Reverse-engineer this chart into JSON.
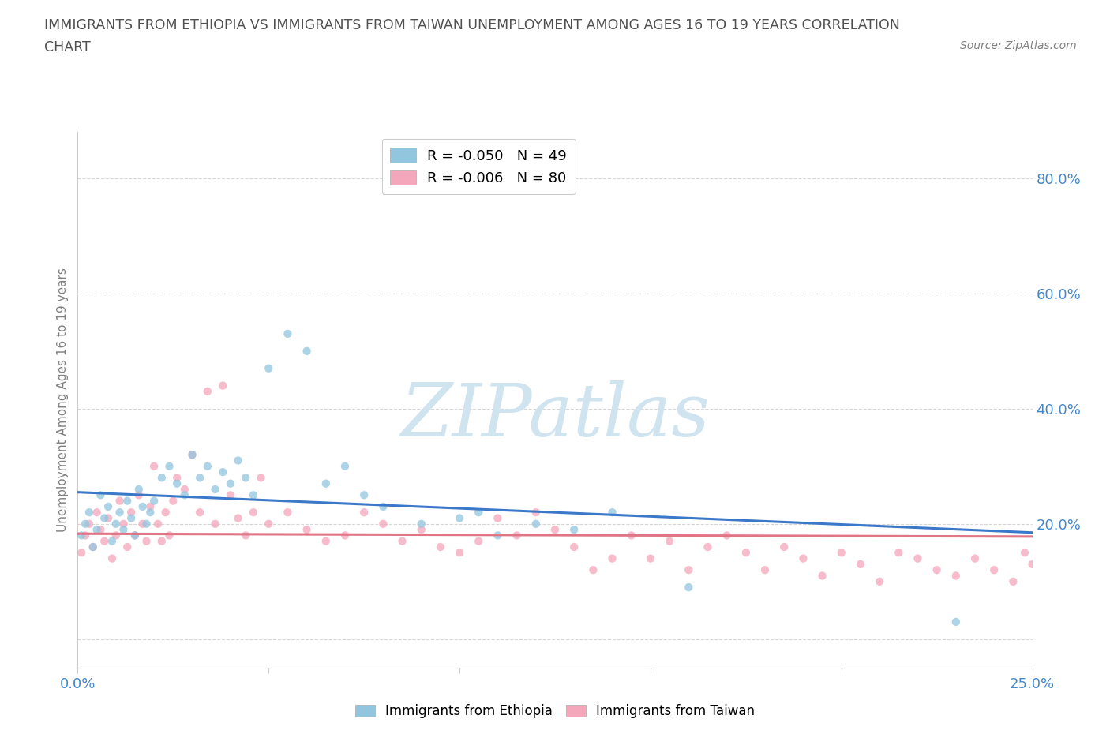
{
  "title_line1": "IMMIGRANTS FROM ETHIOPIA VS IMMIGRANTS FROM TAIWAN UNEMPLOYMENT AMONG AGES 16 TO 19 YEARS CORRELATION",
  "title_line2": "CHART",
  "source_text": "Source: ZipAtlas.com",
  "ylabel": "Unemployment Among Ages 16 to 19 years",
  "xlim": [
    0.0,
    0.25
  ],
  "ylim": [
    -0.05,
    0.88
  ],
  "xticks": [
    0.0,
    0.05,
    0.1,
    0.15,
    0.2,
    0.25
  ],
  "xticklabels": [
    "0.0%",
    "",
    "",
    "",
    "",
    "25.0%"
  ],
  "yticks": [
    0.0,
    0.2,
    0.4,
    0.6,
    0.8
  ],
  "yticklabels": [
    "",
    "20.0%",
    "40.0%",
    "60.0%",
    "80.0%"
  ],
  "legend_entries": [
    {
      "label": "R = -0.050   N = 49",
      "color": "#92c5de"
    },
    {
      "label": "R = -0.006   N = 80",
      "color": "#f4a6ba"
    }
  ],
  "ethiopia_x": [
    0.001,
    0.002,
    0.003,
    0.004,
    0.005,
    0.006,
    0.007,
    0.008,
    0.009,
    0.01,
    0.011,
    0.012,
    0.013,
    0.014,
    0.015,
    0.016,
    0.017,
    0.018,
    0.019,
    0.02,
    0.022,
    0.024,
    0.026,
    0.028,
    0.03,
    0.032,
    0.034,
    0.036,
    0.038,
    0.04,
    0.042,
    0.044,
    0.046,
    0.05,
    0.055,
    0.06,
    0.065,
    0.07,
    0.075,
    0.08,
    0.09,
    0.1,
    0.105,
    0.11,
    0.12,
    0.13,
    0.14,
    0.16,
    0.23
  ],
  "ethiopia_y": [
    0.18,
    0.2,
    0.22,
    0.16,
    0.19,
    0.25,
    0.21,
    0.23,
    0.17,
    0.2,
    0.22,
    0.19,
    0.24,
    0.21,
    0.18,
    0.26,
    0.23,
    0.2,
    0.22,
    0.24,
    0.28,
    0.3,
    0.27,
    0.25,
    0.32,
    0.28,
    0.3,
    0.26,
    0.29,
    0.27,
    0.31,
    0.28,
    0.25,
    0.47,
    0.53,
    0.5,
    0.27,
    0.3,
    0.25,
    0.23,
    0.2,
    0.21,
    0.22,
    0.18,
    0.2,
    0.19,
    0.22,
    0.09,
    0.03
  ],
  "taiwan_x": [
    0.001,
    0.002,
    0.003,
    0.004,
    0.005,
    0.006,
    0.007,
    0.008,
    0.009,
    0.01,
    0.011,
    0.012,
    0.013,
    0.014,
    0.015,
    0.016,
    0.017,
    0.018,
    0.019,
    0.02,
    0.021,
    0.022,
    0.023,
    0.024,
    0.025,
    0.026,
    0.028,
    0.03,
    0.032,
    0.034,
    0.036,
    0.038,
    0.04,
    0.042,
    0.044,
    0.046,
    0.048,
    0.05,
    0.055,
    0.06,
    0.065,
    0.07,
    0.075,
    0.08,
    0.085,
    0.09,
    0.095,
    0.1,
    0.105,
    0.11,
    0.115,
    0.12,
    0.125,
    0.13,
    0.135,
    0.14,
    0.145,
    0.15,
    0.155,
    0.16,
    0.165,
    0.17,
    0.175,
    0.18,
    0.185,
    0.19,
    0.195,
    0.2,
    0.205,
    0.21,
    0.215,
    0.22,
    0.225,
    0.23,
    0.235,
    0.24,
    0.245,
    0.248,
    0.25,
    0.252
  ],
  "taiwan_y": [
    0.15,
    0.18,
    0.2,
    0.16,
    0.22,
    0.19,
    0.17,
    0.21,
    0.14,
    0.18,
    0.24,
    0.2,
    0.16,
    0.22,
    0.18,
    0.25,
    0.2,
    0.17,
    0.23,
    0.3,
    0.2,
    0.17,
    0.22,
    0.18,
    0.24,
    0.28,
    0.26,
    0.32,
    0.22,
    0.43,
    0.2,
    0.44,
    0.25,
    0.21,
    0.18,
    0.22,
    0.28,
    0.2,
    0.22,
    0.19,
    0.17,
    0.18,
    0.22,
    0.2,
    0.17,
    0.19,
    0.16,
    0.15,
    0.17,
    0.21,
    0.18,
    0.22,
    0.19,
    0.16,
    0.12,
    0.14,
    0.18,
    0.14,
    0.17,
    0.12,
    0.16,
    0.18,
    0.15,
    0.12,
    0.16,
    0.14,
    0.11,
    0.15,
    0.13,
    0.1,
    0.15,
    0.14,
    0.12,
    0.11,
    0.14,
    0.12,
    0.1,
    0.15,
    0.13,
    0.11
  ],
  "ethiopia_line_x": [
    0.0,
    0.25
  ],
  "ethiopia_line_y": [
    0.255,
    0.185
  ],
  "taiwan_line_x": [
    0.0,
    0.25
  ],
  "taiwan_line_y": [
    0.183,
    0.178
  ],
  "ethiopia_color": "#92c5de",
  "taiwan_color": "#f4a6ba",
  "ethiopia_line_color": "#3a78c9",
  "taiwan_line_color": "#e07585",
  "watermark": "ZIPatlas",
  "watermark_color": "#d0e4f0",
  "background_color": "#ffffff",
  "grid_color": "#cccccc",
  "title_color": "#505050",
  "label_color": "#808080",
  "tick_color": "#4488cc",
  "scatter_size": 55
}
